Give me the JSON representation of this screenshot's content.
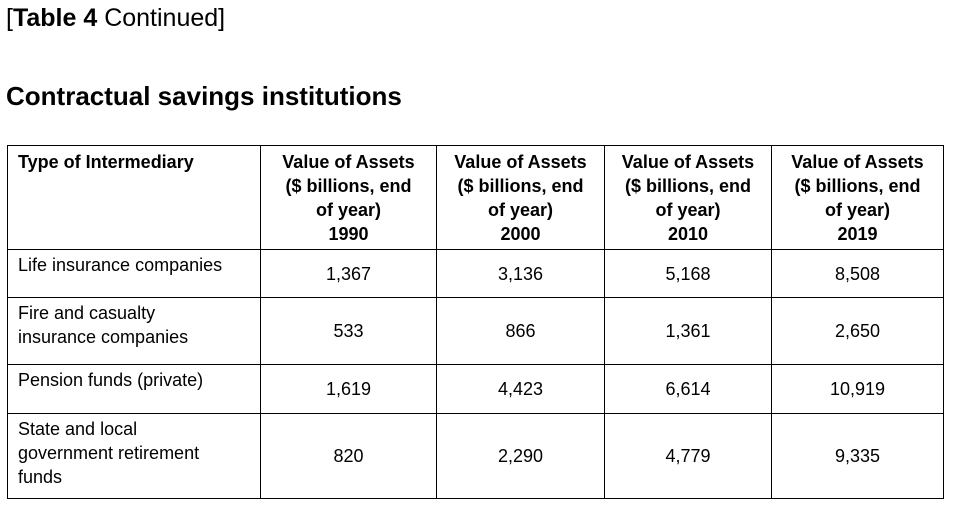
{
  "caption": {
    "open_bracket": "[",
    "bold": "Table 4",
    "rest": " Continued]"
  },
  "heading": "Contractual savings institutions",
  "table": {
    "header_first": "Type of Intermediary",
    "columns": [
      {
        "lines": [
          "Value of Assets",
          "($ billions, end",
          "of year)",
          "1990"
        ]
      },
      {
        "lines": [
          "Value of Assets",
          "($ billions, end",
          "of year)",
          "2000"
        ]
      },
      {
        "lines": [
          "Value of Assets",
          "($ billions, end",
          "of year)",
          "2010"
        ]
      },
      {
        "lines": [
          "Value of Assets",
          "($ billions, end",
          "of year)",
          "2019"
        ]
      }
    ],
    "rows": [
      {
        "type_lines": [
          "Life insurance companies"
        ],
        "values": [
          "1,367",
          "3,136",
          "5,168",
          "8,508"
        ]
      },
      {
        "type_lines": [
          "Fire and casualty",
          "insurance companies"
        ],
        "values": [
          "533",
          "866",
          "1,361",
          "2,650"
        ]
      },
      {
        "type_lines": [
          "Pension funds (private)"
        ],
        "values": [
          "1,619",
          "4,423",
          "6,614",
          "10,919"
        ]
      },
      {
        "type_lines": [
          "State and local",
          "government retirement",
          "funds"
        ],
        "values": [
          "820",
          "2,290",
          "4,779",
          "9,335"
        ]
      }
    ]
  }
}
